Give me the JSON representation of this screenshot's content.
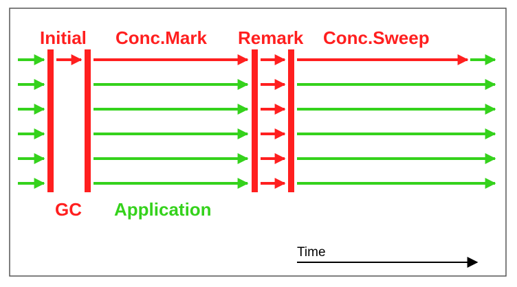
{
  "colors": {
    "gc": "#ff1f1f",
    "application": "#35d21c",
    "time_axis": "#000000",
    "frame": "#555555"
  },
  "labels": {
    "initial": "Initial",
    "conc_mark": "Conc.Mark",
    "remark": "Remark",
    "conc_sweep": "Conc.Sweep",
    "gc": "GC",
    "application": "Application",
    "time": "Time"
  },
  "threads": {
    "total": 6,
    "gc_thread_index": 0
  }
}
